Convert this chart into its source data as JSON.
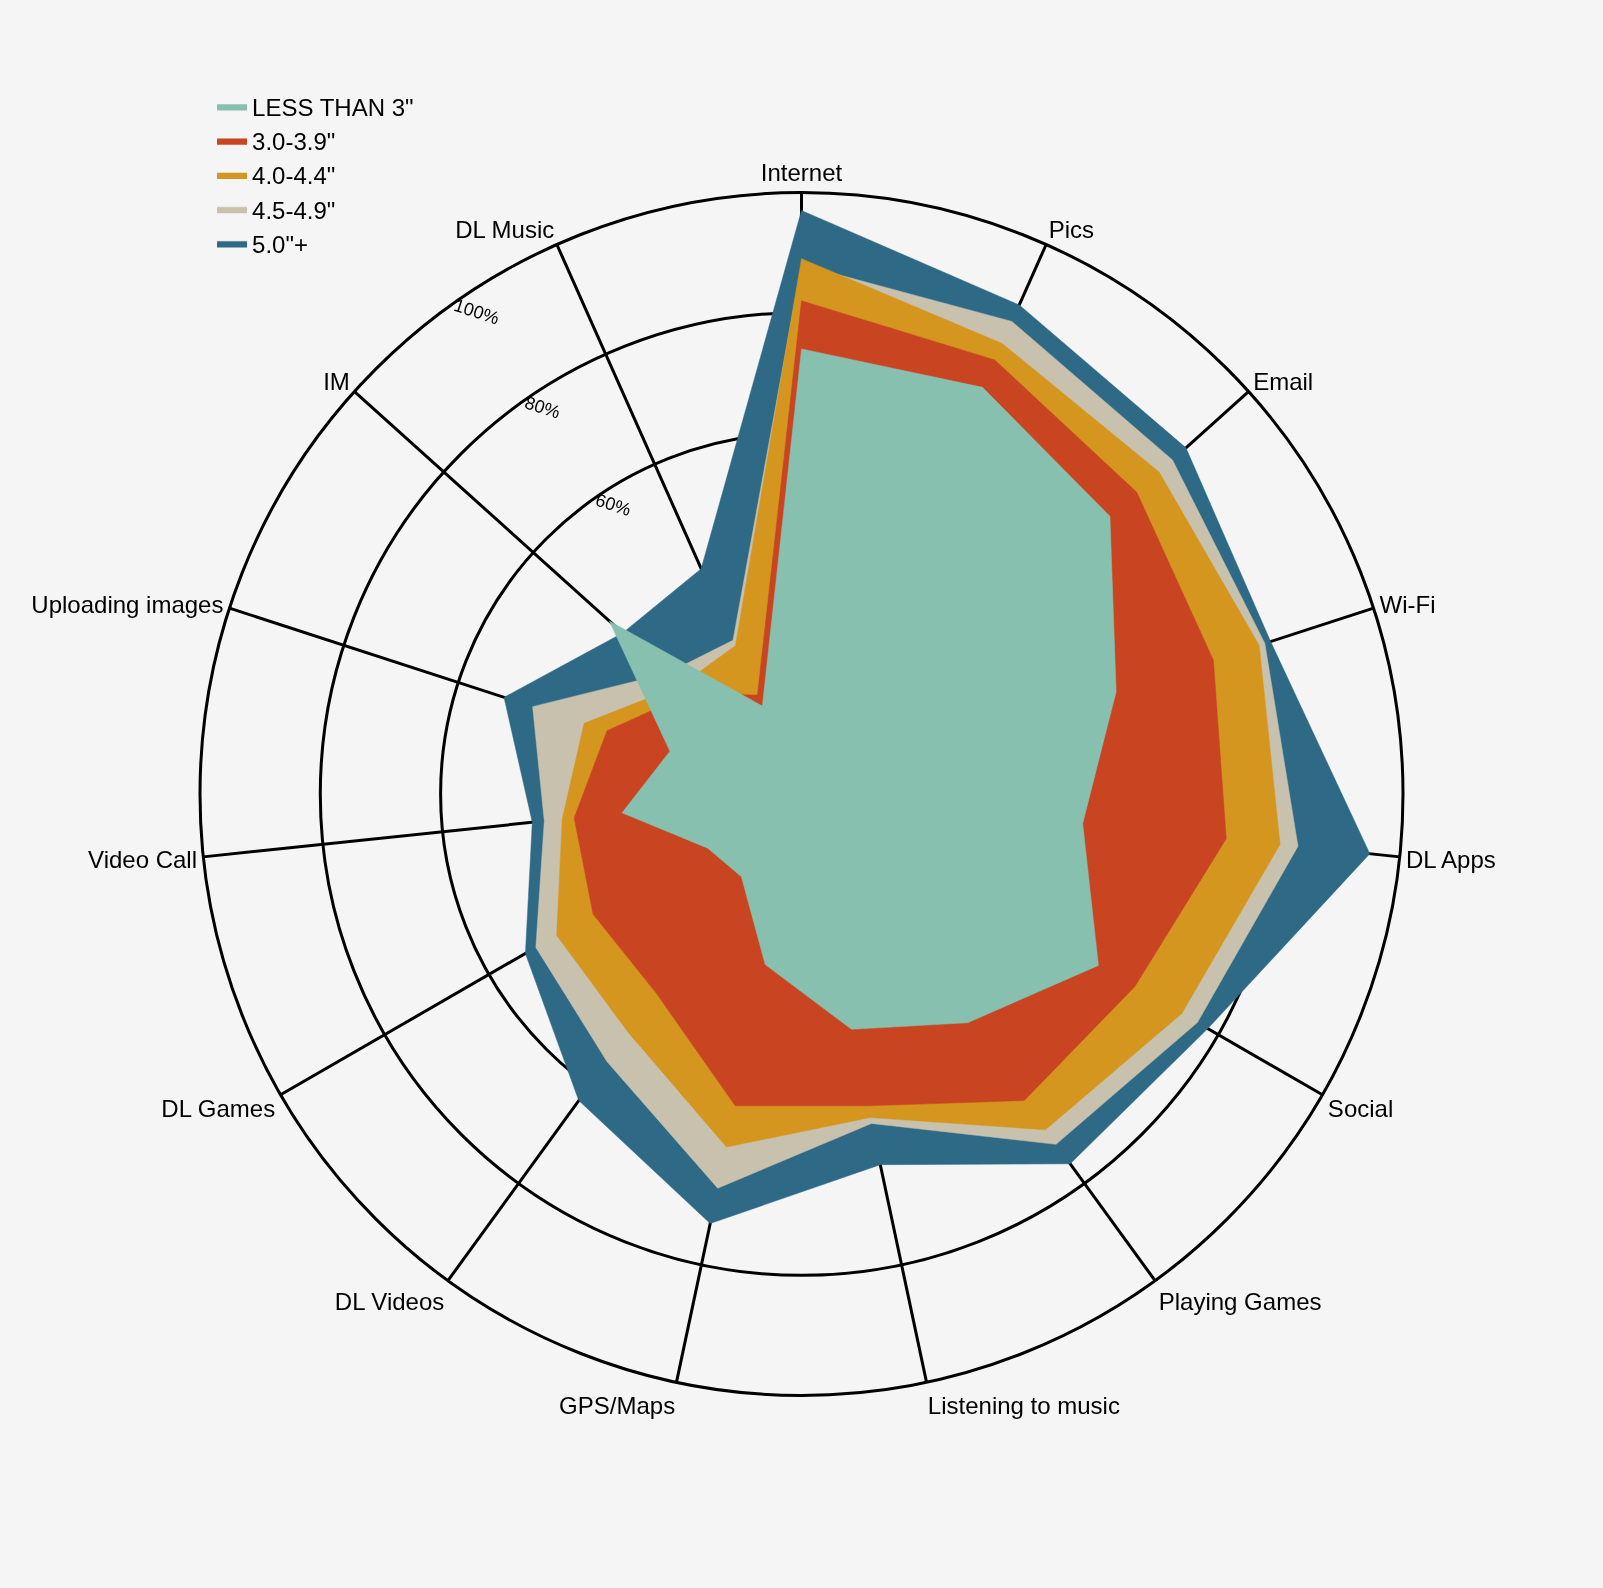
{
  "chart_data": {
    "type": "radar",
    "categories": [
      "Internet",
      "Pics",
      "Email",
      "Wi-Fi",
      "DL Apps",
      "Social",
      "Playing Games",
      "Listening to music",
      "GPS/Maps",
      "DL Videos",
      "DL Games",
      "Video Call",
      "Uploading images",
      "IM",
      "DL Music"
    ],
    "series": [
      {
        "name": "LESS THAN 3\"",
        "color": "#88c0b0",
        "values": [
          74,
          74,
          69,
          55,
          47,
          57,
          47,
          40,
          29,
          17,
          18,
          30,
          23,
          43,
          16
        ]
      },
      {
        "name": "3.0-3.9\"",
        "color": "#c94522",
        "values": [
          82,
          79,
          75,
          72,
          71,
          64,
          63,
          53,
          53,
          41,
          40,
          38,
          34,
          25,
          18
        ]
      },
      {
        "name": "4.0-4.4\"",
        "color": "#d4961f",
        "values": [
          89,
          82,
          80,
          80,
          80,
          73,
          69,
          55,
          60,
          49,
          47,
          40,
          38,
          27,
          27
        ]
      },
      {
        "name": "4.5-4.9\"",
        "color": "#c8c1ad",
        "values": [
          88,
          86,
          83,
          81,
          83,
          76,
          72,
          56,
          67,
          55,
          51,
          43,
          47,
          30,
          28
        ]
      },
      {
        "name": "5.0\"+",
        "color": "#2e6985",
        "values": [
          97,
          89,
          86,
          82,
          95,
          78,
          76,
          63,
          73,
          63,
          53,
          45,
          52,
          40,
          41
        ]
      }
    ],
    "ylim": [
      0,
      100
    ],
    "yticks": [
      {
        "value": 60,
        "label": "60%"
      },
      {
        "value": 80,
        "label": "80%"
      },
      {
        "value": 100,
        "label": "100%"
      }
    ],
    "grid": true,
    "legend": "top left"
  }
}
